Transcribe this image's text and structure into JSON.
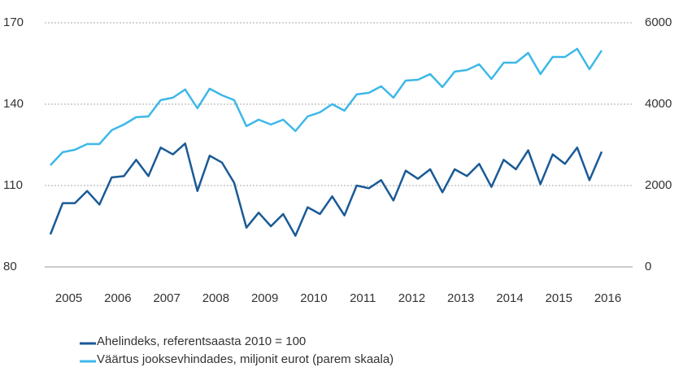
{
  "chart_data": {
    "type": "line",
    "categories": [
      null,
      "2005",
      null,
      null,
      null,
      "2006",
      null,
      null,
      null,
      "2007",
      null,
      null,
      null,
      "2008",
      null,
      null,
      null,
      "2009",
      null,
      null,
      null,
      "2010",
      null,
      null,
      null,
      "2011",
      null,
      null,
      null,
      "2012",
      null,
      null,
      null,
      "2013",
      null,
      null,
      null,
      "2014",
      null,
      null,
      null,
      "2015",
      null,
      null,
      null,
      "2016"
    ],
    "series": [
      {
        "name": "Ahelindeks, referentsaasta 2010 = 100",
        "color": "#1a5a96",
        "values": [
          92,
          103.5,
          103.5,
          108,
          103,
          113,
          113.5,
          119.5,
          113.5,
          124,
          121.5,
          125.5,
          108,
          121,
          118.5,
          111,
          94.5,
          100,
          95,
          99.5,
          91.5,
          102,
          99.5,
          106,
          99,
          110,
          109,
          112,
          104.5,
          115.5,
          112.5,
          116,
          107.5,
          116,
          113.5,
          118,
          109.5,
          119.5,
          116,
          123,
          110.5,
          121.5,
          118,
          124,
          112,
          122.5
        ]
      },
      {
        "name": "Väärtus jooksevhindades, miljonit eurot (parem skaala)",
        "color": "#3db8e8",
        "axis": "y2",
        "values": [
          2500,
          2820,
          2880,
          3020,
          3020,
          3360,
          3500,
          3680,
          3700,
          4100,
          4160,
          4360,
          3900,
          4380,
          4220,
          4100,
          3460,
          3620,
          3500,
          3620,
          3340,
          3700,
          3800,
          4000,
          3840,
          4240,
          4280,
          4440,
          4160,
          4580,
          4600,
          4740,
          4420,
          4800,
          4840,
          4980,
          4620,
          5020,
          5020,
          5260,
          4740,
          5160,
          5160,
          5360,
          4860,
          5320
        ]
      }
    ],
    "ylim": [
      80,
      170
    ],
    "yticks": [
      80,
      110,
      140,
      170
    ],
    "y2lim": [
      0,
      6000
    ],
    "y2ticks": [
      0,
      2000,
      4000,
      6000
    ],
    "grid": true
  }
}
